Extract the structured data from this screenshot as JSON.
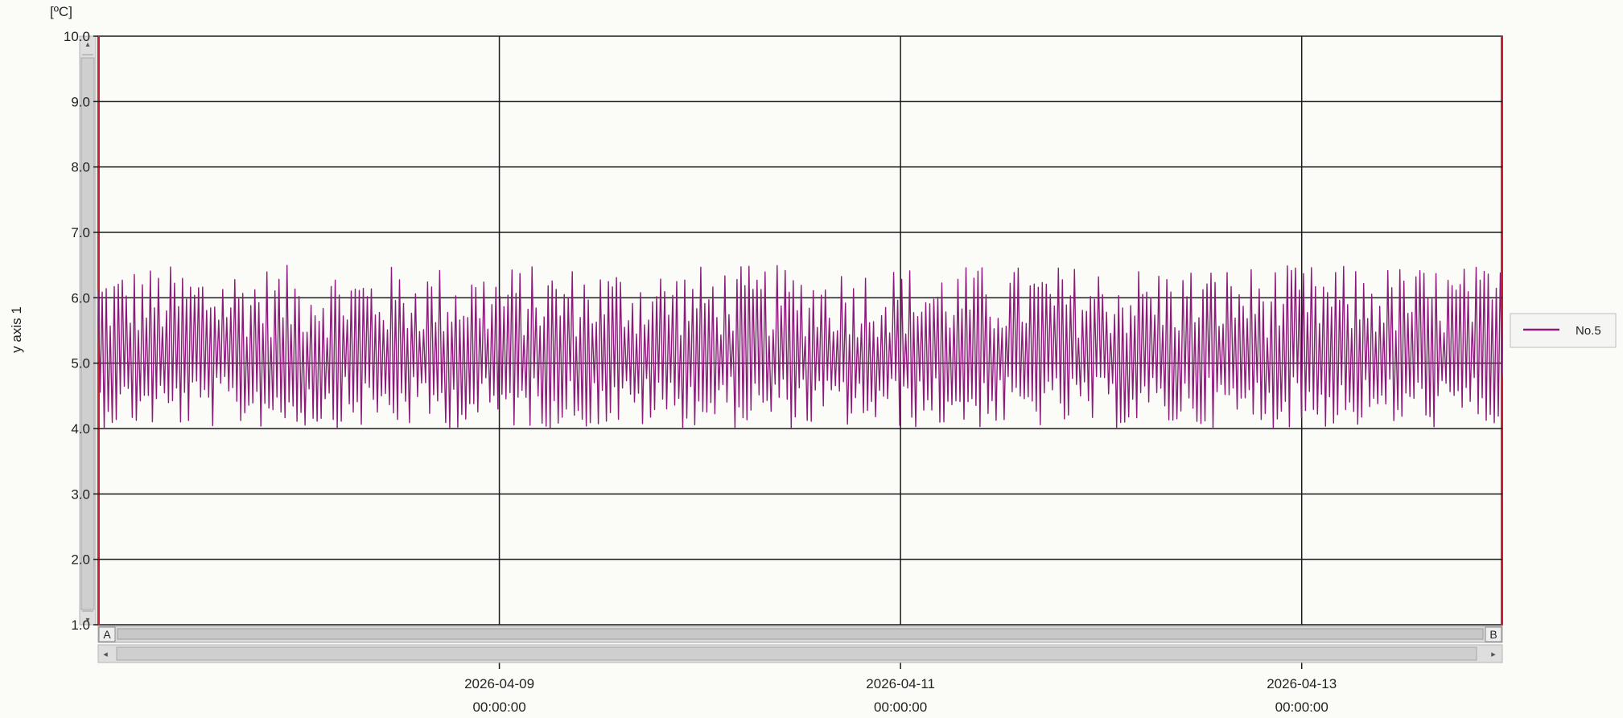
{
  "chart_data": {
    "type": "line",
    "y_unit": "[ºC]",
    "ylabel": "y axis 1",
    "ylim": [
      1.0,
      10.0
    ],
    "y_ticks": [
      "1.0",
      "2.0",
      "3.0",
      "4.0",
      "5.0",
      "6.0",
      "7.0",
      "8.0",
      "9.0",
      "10.0"
    ],
    "x_ticks": [
      {
        "date": "2026-04-09",
        "time": "00:00:00"
      },
      {
        "date": "2026-04-11",
        "time": "00:00:00"
      },
      {
        "date": "2026-04-13",
        "time": "00:00:00"
      }
    ],
    "xlim": [
      "2026-04-07 00:00:00",
      "2026-04-14 00:00:00"
    ],
    "grid": true,
    "legend_position": "right",
    "series": [
      {
        "name": "No.5",
        "color": "#8b1a7a",
        "x_start": "2026-04-07 00:00:00",
        "x_end": "2026-04-14 00:00:00",
        "samples": 700,
        "y_min": 4.0,
        "y_max": 6.5,
        "y_mean": 5.0,
        "description": "rapid oscillation between about 4.0 and 6.5"
      }
    ],
    "range_marker_left": "A",
    "range_marker_right": "B"
  },
  "colors": {
    "plot_background": "#fbfbf8",
    "grid": "#1a1a1a",
    "series": "#8b1a7a",
    "scrollbar": "#d4d4d4"
  }
}
